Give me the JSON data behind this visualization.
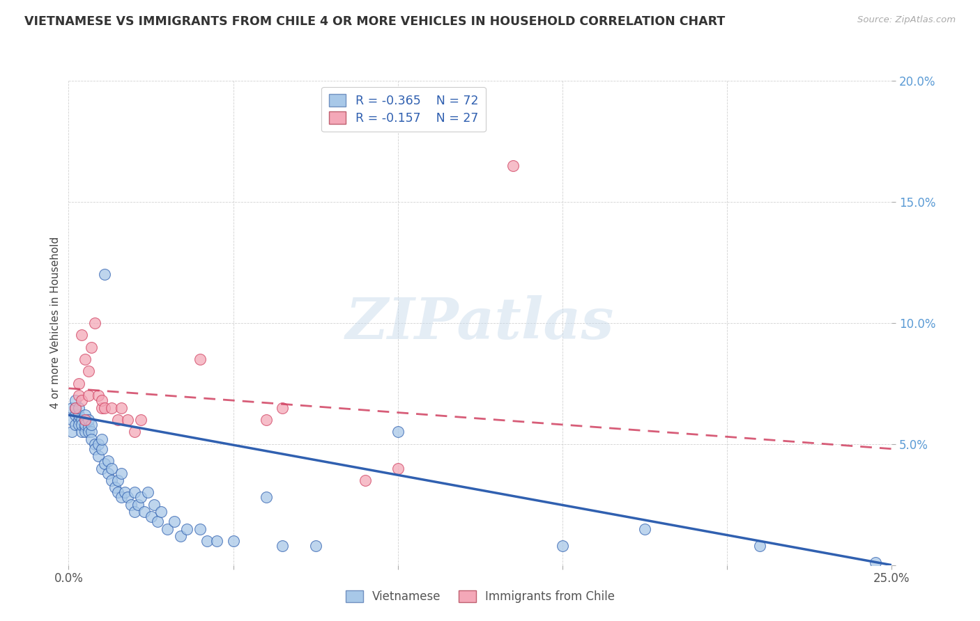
{
  "title": "VIETNAMESE VS IMMIGRANTS FROM CHILE 4 OR MORE VEHICLES IN HOUSEHOLD CORRELATION CHART",
  "source": "Source: ZipAtlas.com",
  "ylabel": "4 or more Vehicles in Household",
  "xmin": 0.0,
  "xmax": 0.25,
  "ymin": 0.0,
  "ymax": 0.2,
  "R1": -0.365,
  "N1": 72,
  "R2": -0.157,
  "N2": 27,
  "color1": "#A8C8E8",
  "color2": "#F4A8B8",
  "line1_color": "#3060B0",
  "line2_color": "#D04060",
  "axis_tick_color_y": "#5B9BD5",
  "axis_tick_color_x": "#555555",
  "title_color": "#333333",
  "legend1_label": "Vietnamese",
  "legend2_label": "Immigrants from Chile",
  "watermark_text": "ZIPatlas",
  "line1_intercept": 0.062,
  "line1_slope": -0.248,
  "line2_intercept": 0.073,
  "line2_slope": -0.1,
  "viet_x": [
    0.001,
    0.001,
    0.001,
    0.002,
    0.002,
    0.002,
    0.002,
    0.003,
    0.003,
    0.003,
    0.003,
    0.004,
    0.004,
    0.004,
    0.005,
    0.005,
    0.005,
    0.005,
    0.005,
    0.006,
    0.006,
    0.006,
    0.007,
    0.007,
    0.007,
    0.008,
    0.008,
    0.009,
    0.009,
    0.01,
    0.01,
    0.01,
    0.011,
    0.011,
    0.012,
    0.012,
    0.013,
    0.013,
    0.014,
    0.015,
    0.015,
    0.016,
    0.016,
    0.017,
    0.018,
    0.019,
    0.02,
    0.02,
    0.021,
    0.022,
    0.023,
    0.024,
    0.025,
    0.026,
    0.027,
    0.028,
    0.03,
    0.032,
    0.034,
    0.036,
    0.04,
    0.042,
    0.045,
    0.05,
    0.06,
    0.065,
    0.075,
    0.1,
    0.15,
    0.175,
    0.21,
    0.245
  ],
  "viet_y": [
    0.06,
    0.055,
    0.065,
    0.062,
    0.058,
    0.065,
    0.068,
    0.06,
    0.062,
    0.058,
    0.065,
    0.055,
    0.06,
    0.058,
    0.06,
    0.057,
    0.055,
    0.062,
    0.058,
    0.057,
    0.055,
    0.06,
    0.055,
    0.058,
    0.052,
    0.05,
    0.048,
    0.05,
    0.045,
    0.048,
    0.052,
    0.04,
    0.12,
    0.042,
    0.038,
    0.043,
    0.035,
    0.04,
    0.032,
    0.035,
    0.03,
    0.038,
    0.028,
    0.03,
    0.028,
    0.025,
    0.03,
    0.022,
    0.025,
    0.028,
    0.022,
    0.03,
    0.02,
    0.025,
    0.018,
    0.022,
    0.015,
    0.018,
    0.012,
    0.015,
    0.015,
    0.01,
    0.01,
    0.01,
    0.028,
    0.008,
    0.008,
    0.055,
    0.008,
    0.015,
    0.008,
    0.001
  ],
  "chile_x": [
    0.002,
    0.003,
    0.003,
    0.004,
    0.004,
    0.005,
    0.005,
    0.006,
    0.006,
    0.007,
    0.008,
    0.009,
    0.01,
    0.01,
    0.011,
    0.013,
    0.015,
    0.016,
    0.018,
    0.02,
    0.022,
    0.04,
    0.06,
    0.065,
    0.09,
    0.1,
    0.135
  ],
  "chile_y": [
    0.065,
    0.07,
    0.075,
    0.068,
    0.095,
    0.06,
    0.085,
    0.07,
    0.08,
    0.09,
    0.1,
    0.07,
    0.065,
    0.068,
    0.065,
    0.065,
    0.06,
    0.065,
    0.06,
    0.055,
    0.06,
    0.085,
    0.06,
    0.065,
    0.035,
    0.04,
    0.165
  ]
}
